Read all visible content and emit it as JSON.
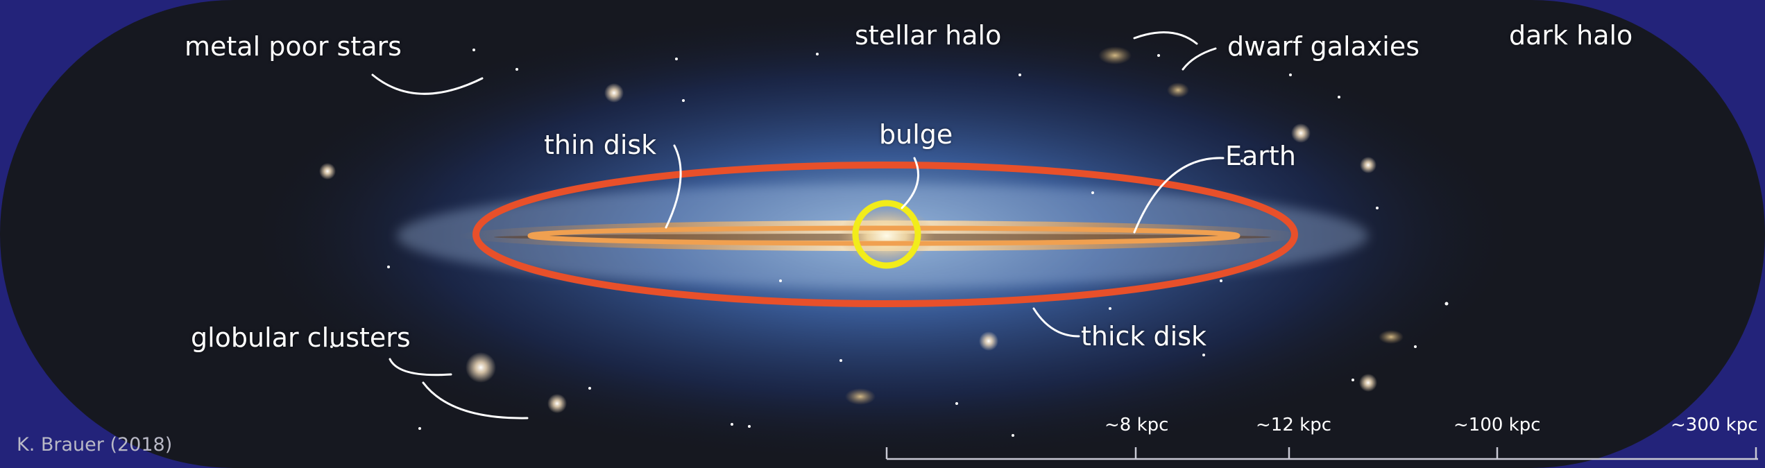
{
  "labels": {
    "metal_poor_stars": "metal poor stars",
    "stellar_halo": "stellar halo",
    "dwarf_galaxies": "dwarf galaxies",
    "dark_halo": "dark halo",
    "thin_disk": "thin disk",
    "bulge": "bulge",
    "earth": "Earth",
    "globular_clusters": "globular clusters",
    "thick_disk": "thick disk"
  },
  "scale": {
    "ticks": [
      "~8 kpc",
      "~12 kpc",
      "~100 kpc",
      "~300 kpc"
    ]
  },
  "credit": "K. Brauer (2018)",
  "colors": {
    "background": "#23237a",
    "dark_halo": "#161820",
    "thick_disk_ring": "#e8502a",
    "thin_disk_ring": "#f0a050",
    "bulge_ring": "#f2ec1a",
    "text": "#ffffff"
  }
}
